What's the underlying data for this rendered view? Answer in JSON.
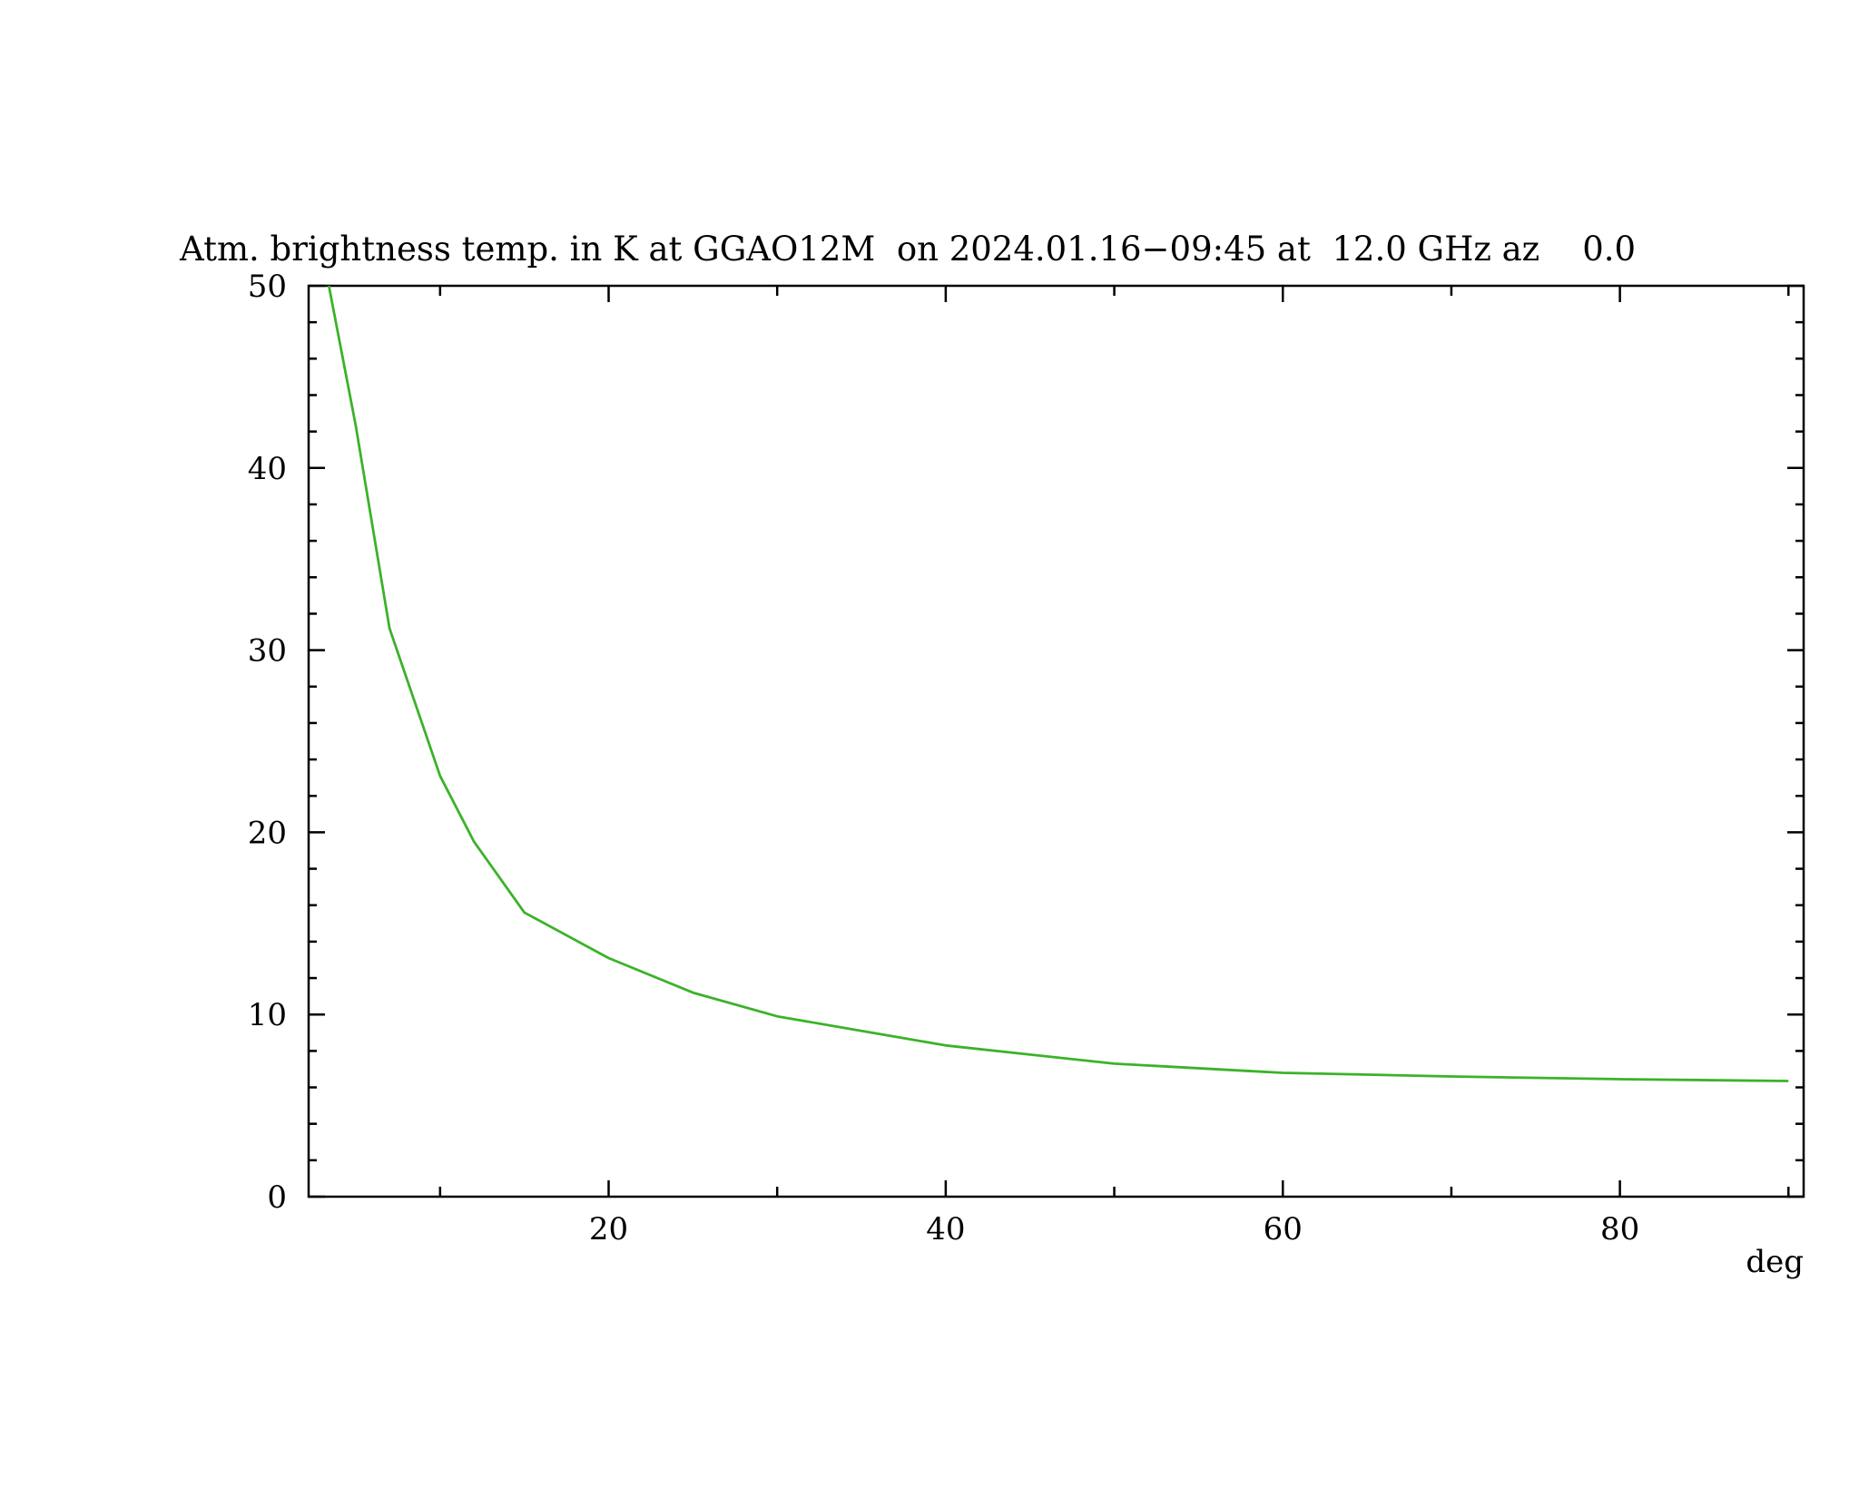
{
  "chart_data": {
    "type": "line",
    "title": "Atm. brightness temp. in K at GGAO12M  on 2024.01.16−09:45 at  12.0 GHz az    0.0",
    "xlabel": "deg",
    "x": [
      3.4,
      5,
      7,
      10,
      12,
      15,
      20,
      25,
      30,
      40,
      50,
      60,
      70,
      80,
      90
    ],
    "values": [
      50,
      42.3,
      31.2,
      23.1,
      19.5,
      15.6,
      13.1,
      11.2,
      9.9,
      8.3,
      7.3,
      6.8,
      6.6,
      6.45,
      6.35
    ],
    "color": "#3cb22a",
    "xlim": [
      2.2,
      90.9
    ],
    "xticks": [
      20,
      40,
      60,
      80
    ],
    "ylim": [
      0,
      50
    ],
    "yticks": [
      0,
      10,
      20,
      30,
      40,
      50
    ]
  }
}
